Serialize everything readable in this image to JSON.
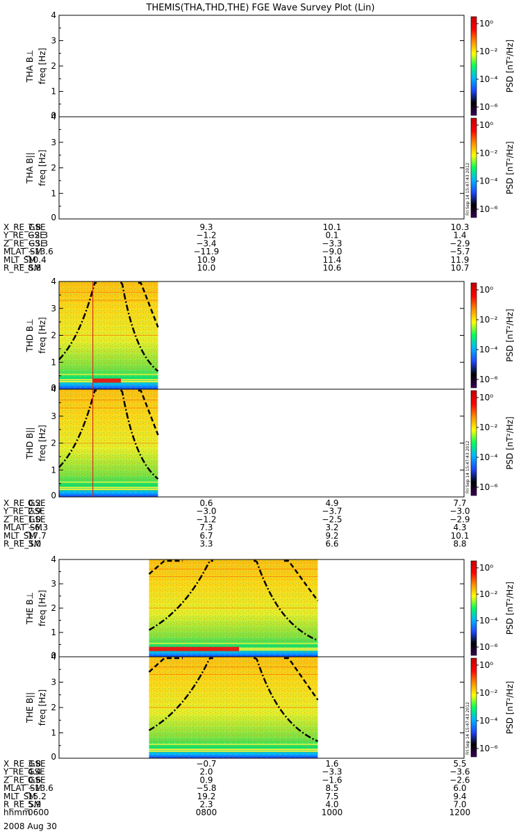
{
  "title": "THEMIS(THA,THD,THE) FGE Wave Survey Plot (Lin)",
  "colorbar": {
    "label": "PSD [nT²/Hz]",
    "tick_labels": [
      "10⁰",
      "10⁻²",
      "10⁻⁴",
      "10⁻⁶"
    ],
    "stops": [
      "#3a0058",
      "#000000",
      "#1e46ff",
      "#00b4ff",
      "#00ff5a",
      "#ffff00",
      "#ff8c00",
      "#ff0000",
      "#c40000"
    ]
  },
  "timestamp_stamp": "Fri Sep 14 15:47:43 2012",
  "chart_data": [
    {
      "type": "heatmap",
      "id": "tha-bperp",
      "ylabel": [
        "THA B⊥",
        "freq [Hz]"
      ],
      "ylim": [
        0,
        4
      ],
      "yticks": [
        "0",
        "1",
        "2",
        "3",
        "4"
      ],
      "xlim": [
        "06:00",
        "12:00"
      ],
      "data_coverage": null
    },
    {
      "type": "heatmap",
      "id": "tha-bpar",
      "ylabel": [
        "THA B||",
        "freq [Hz]"
      ],
      "ylim": [
        0,
        4
      ],
      "yticks": [
        "0",
        "1",
        "2",
        "3",
        "4"
      ],
      "xlim": [
        "06:00",
        "12:00"
      ],
      "data_coverage": null
    },
    {
      "type": "heatmap",
      "id": "thd-bperp",
      "ylabel": [
        "THD B⊥",
        "freq [Hz]"
      ],
      "ylim": [
        0,
        4
      ],
      "yticks": [
        "0",
        "1",
        "2",
        "3",
        "4"
      ],
      "xlim": [
        "06:00",
        "12:00"
      ],
      "data_coverage": [
        "06:00",
        "07:28"
      ],
      "event_marker_time": "06:30",
      "strong_band": [
        "06:30",
        "06:55"
      ]
    },
    {
      "type": "heatmap",
      "id": "thd-bpar",
      "ylabel": [
        "THD B||",
        "freq [Hz]"
      ],
      "ylim": [
        0,
        4
      ],
      "yticks": [
        "0",
        "1",
        "2",
        "3",
        "4"
      ],
      "xlim": [
        "06:00",
        "12:00"
      ],
      "data_coverage": [
        "06:00",
        "07:28"
      ],
      "event_marker_time": "06:30"
    },
    {
      "type": "heatmap",
      "id": "the-bperp",
      "ylabel": [
        "THE B⊥",
        "freq [Hz]"
      ],
      "ylim": [
        0,
        4
      ],
      "yticks": [
        "0",
        "1",
        "2",
        "3",
        "4"
      ],
      "xlim": [
        "06:00",
        "12:00"
      ],
      "data_coverage": [
        "07:20",
        "09:50"
      ],
      "strong_band": [
        "07:20",
        "08:40"
      ]
    },
    {
      "type": "heatmap",
      "id": "the-bpar",
      "ylabel": [
        "THE B||",
        "freq [Hz]"
      ],
      "ylim": [
        0,
        4
      ],
      "yticks": [
        "0",
        "1",
        "2",
        "3",
        "4"
      ],
      "xlim": [
        "06:00",
        "12:00"
      ],
      "data_coverage": [
        "07:20",
        "09:50"
      ]
    }
  ],
  "ephemeris": [
    {
      "rows": [
        {
          "label": "X_RE_GSE",
          "values": [
            "7.8",
            "9.3",
            "10.1",
            "10.3"
          ]
        },
        {
          "label": "Y_RE_GSE",
          "values": [
            "−2.3",
            "−1.2",
            "0.1",
            "1.4"
          ]
        },
        {
          "label": "Z_RE_GSE",
          "values": [
            "−3.3",
            "−3.4",
            "−3.3",
            "−2.9"
          ]
        },
        {
          "label": "MLAT_SM",
          "values": [
            "−13.6",
            "−11.9",
            "−9.0",
            "−5.7"
          ]
        },
        {
          "label": "MLT_SM",
          "values": [
            "10.4",
            "10.9",
            "11.4",
            "11.9"
          ]
        },
        {
          "label": "R_RE_SM",
          "values": [
            "8.8",
            "10.0",
            "10.6",
            "10.7"
          ]
        }
      ]
    },
    {
      "rows": [
        {
          "label": "X_RE_GSE",
          "values": [
            "0.2",
            "0.6",
            "4.9",
            "7.7"
          ]
        },
        {
          "label": "Y_RE_GSE",
          "values": [
            "2.9",
            "−3.0",
            "−3.7",
            "−3.0"
          ]
        },
        {
          "label": "Z_RE_GSE",
          "values": [
            "1.0",
            "−1.2",
            "−2.5",
            "−2.9"
          ]
        },
        {
          "label": "MLAT_SM",
          "values": [
            "−6.3",
            "7.3",
            "3.2",
            "4.3"
          ]
        },
        {
          "label": "MLT_SM",
          "values": [
            "17.7",
            "6.7",
            "9.2",
            "10.1"
          ]
        },
        {
          "label": "R_RE_SM",
          "values": [
            "3.0",
            "3.3",
            "6.6",
            "8.8"
          ]
        }
      ]
    },
    {
      "rows": [
        {
          "label": "X_RE_GSE",
          "values": [
            "3.8",
            "−0.7",
            "1.6",
            "5.5"
          ]
        },
        {
          "label": "Y_RE_GSE",
          "values": [
            "4.4",
            "2.0",
            "−3.3",
            "−3.6"
          ]
        },
        {
          "label": "Z_RE_GSE",
          "values": [
            "0.6",
            "0.9",
            "−1.6",
            "−2.6"
          ]
        },
        {
          "label": "MLAT_SM",
          "values": [
            "−13.6",
            "−5.8",
            "8.5",
            "6.0"
          ]
        },
        {
          "label": "MLT_SM",
          "values": [
            "15.2",
            "19.2",
            "7.5",
            "9.4"
          ]
        },
        {
          "label": "R_RE_SM",
          "values": [
            "5.9",
            "2.3",
            "4.0",
            "7.0"
          ]
        }
      ],
      "time_row": {
        "label": "hhmm",
        "values": [
          "0600",
          "0800",
          "1000",
          "1200"
        ]
      },
      "date": "2008 Aug 30"
    }
  ]
}
